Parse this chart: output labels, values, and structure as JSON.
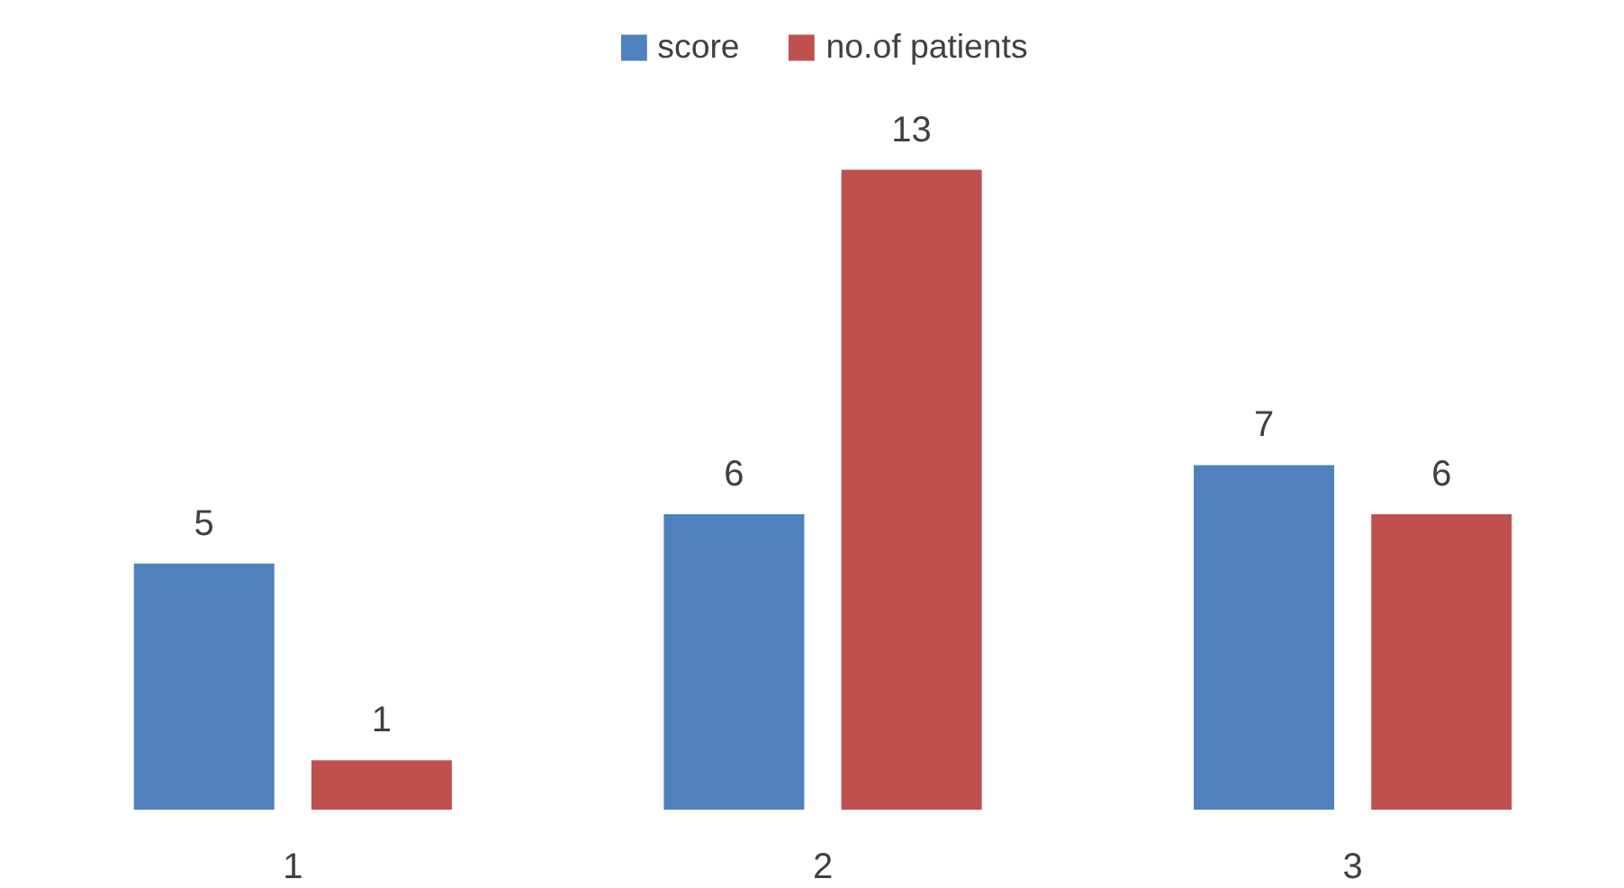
{
  "chart_data": {
    "type": "bar",
    "categories": [
      "1",
      "2",
      "3"
    ],
    "series": [
      {
        "name": "score",
        "color": "#4f81bd",
        "values": [
          5,
          6,
          7
        ]
      },
      {
        "name": "no.of patients",
        "color": "#c0504d",
        "values": [
          1,
          13,
          6
        ]
      }
    ],
    "data_labels": true,
    "legend": "top",
    "tick_labels": "x"
  }
}
